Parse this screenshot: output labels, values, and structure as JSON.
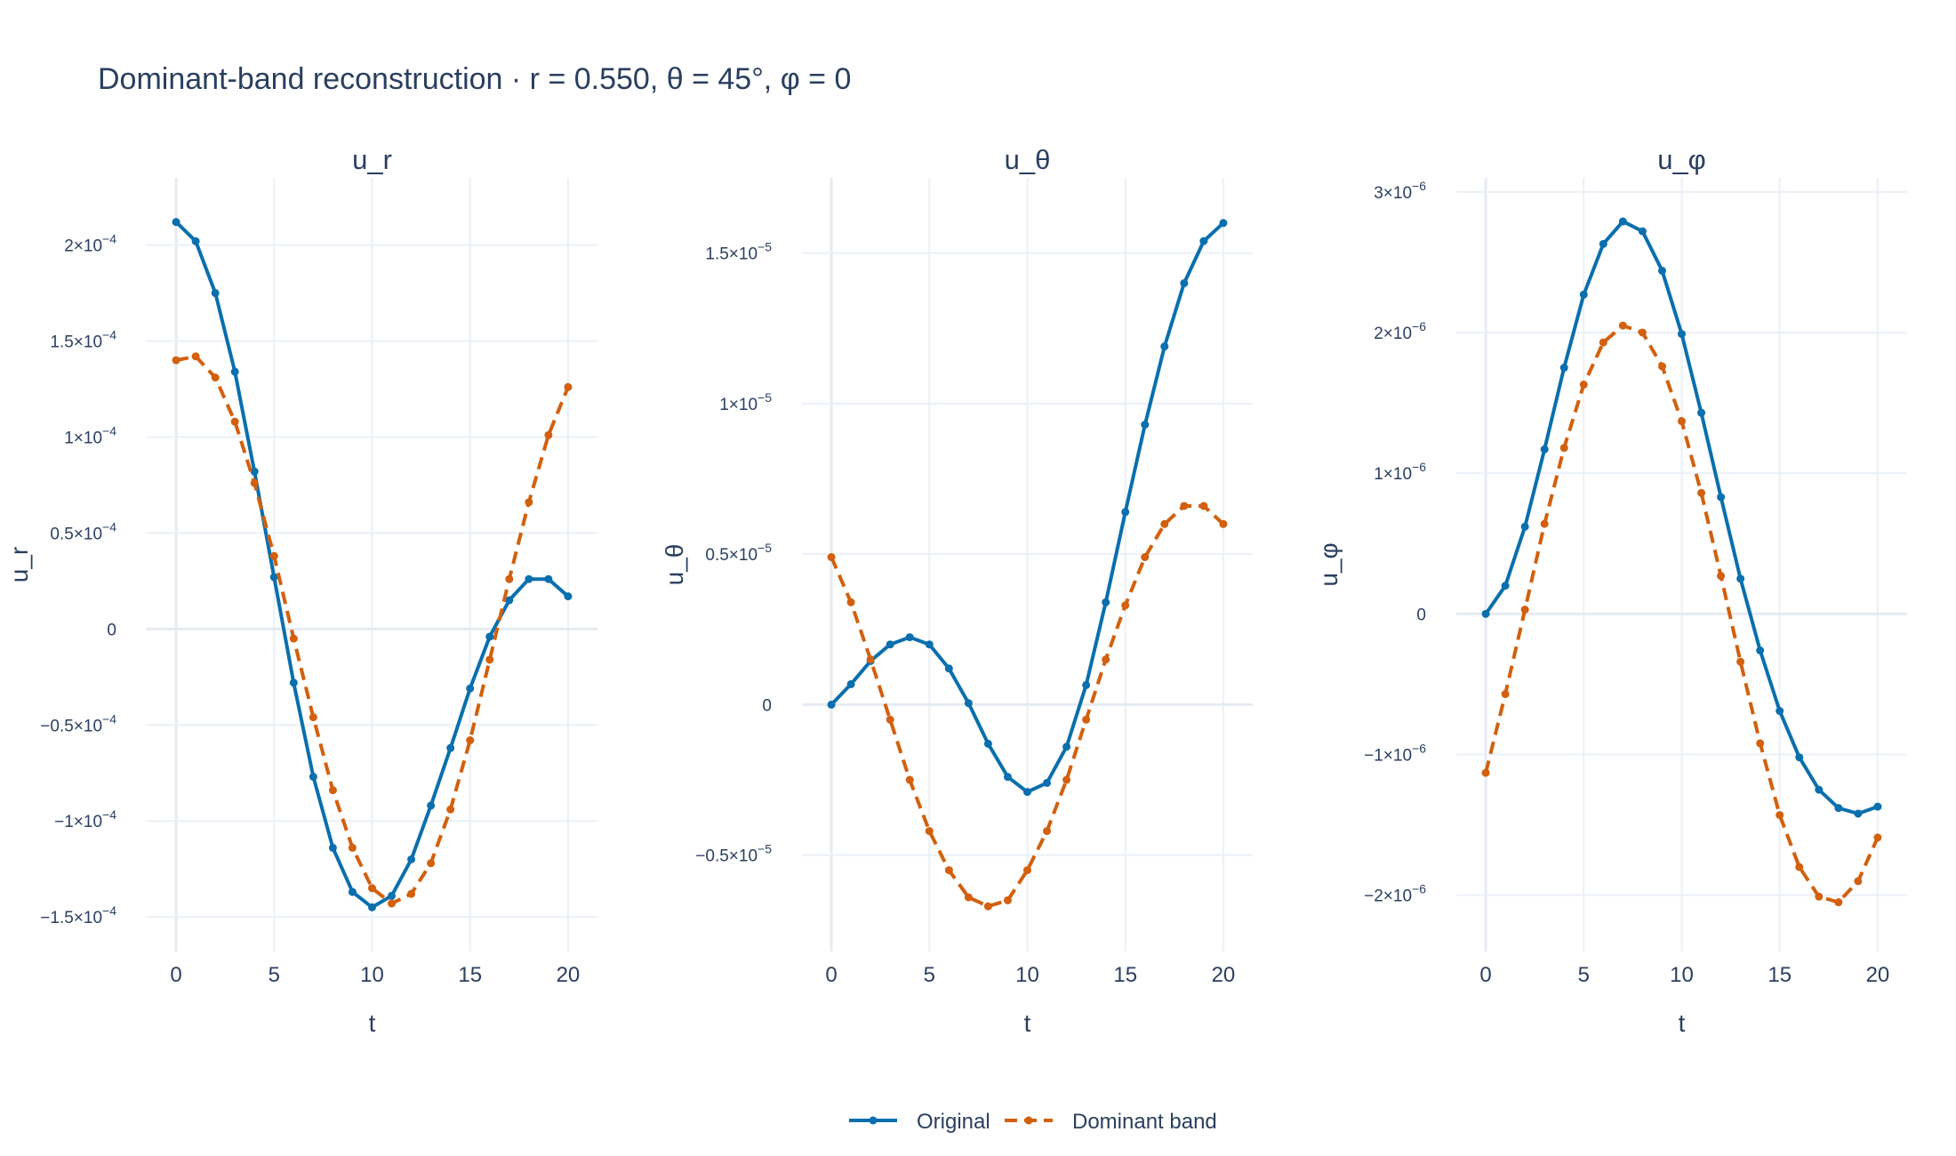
{
  "title": "Dominant-band reconstruction · r = 0.550, θ = 45°, φ = 0",
  "chart_data": [
    {
      "type": "line",
      "title": "u_r",
      "xlabel": "t",
      "ylabel": "u_r",
      "xlim": [
        -1.5,
        21.5
      ],
      "ylim": [
        -0.000168,
        0.000235
      ],
      "x_ticks": [
        0,
        5,
        10,
        15,
        20
      ],
      "x_tick_labels": [
        "0",
        "5",
        "10",
        "15",
        "20"
      ],
      "y_ticks": [
        -0.00015,
        -0.0001,
        -5e-05,
        0,
        5e-05,
        0.0001,
        0.00015,
        0.0002
      ],
      "y_tick_labels": [
        {
          "m": "−1.5×10",
          "e": "−4"
        },
        {
          "m": "−1×10",
          "e": "−4"
        },
        {
          "m": "−0.5×10",
          "e": "−4"
        },
        {
          "m": "0",
          "e": ""
        },
        {
          "m": "0.5×10",
          "e": "−4"
        },
        {
          "m": "1×10",
          "e": "−4"
        },
        {
          "m": "1.5×10",
          "e": "−4"
        },
        {
          "m": "2×10",
          "e": "−4"
        }
      ],
      "x": [
        0,
        1,
        2,
        3,
        4,
        5,
        6,
        7,
        8,
        9,
        10,
        11,
        12,
        13,
        14,
        15,
        16,
        17,
        18,
        19,
        20
      ],
      "series": [
        {
          "name": "Original",
          "values": [
            0.000212,
            0.000202,
            0.000175,
            0.000134,
            8.2e-05,
            2.7e-05,
            -2.8e-05,
            -7.7e-05,
            -0.000114,
            -0.000137,
            -0.000145,
            -0.000139,
            -0.00012,
            -9.2e-05,
            -6.2e-05,
            -3.1e-05,
            -4e-06,
            1.5e-05,
            2.6e-05,
            2.6e-05,
            1.7e-05
          ]
        },
        {
          "name": "Dominant band",
          "values": [
            0.00014,
            0.000142,
            0.000131,
            0.000108,
            7.6e-05,
            3.8e-05,
            -5e-06,
            -4.6e-05,
            -8.4e-05,
            -0.000114,
            -0.000135,
            -0.000143,
            -0.000138,
            -0.000122,
            -9.4e-05,
            -5.8e-05,
            -1.6e-05,
            2.6e-05,
            6.6e-05,
            0.000101,
            0.000126
          ]
        }
      ]
    },
    {
      "type": "line",
      "title": "u_θ",
      "xlabel": "t",
      "ylabel": "u_θ",
      "xlim": [
        -1.5,
        21.5
      ],
      "ylim": [
        -8.2e-06,
        1.75e-05
      ],
      "x_ticks": [
        0,
        5,
        10,
        15,
        20
      ],
      "x_tick_labels": [
        "0",
        "5",
        "10",
        "15",
        "20"
      ],
      "y_ticks": [
        -5e-06,
        0,
        5e-06,
        1e-05,
        1.5e-05
      ],
      "y_tick_labels": [
        {
          "m": "−0.5×10",
          "e": "−5"
        },
        {
          "m": "0",
          "e": ""
        },
        {
          "m": "0.5×10",
          "e": "−5"
        },
        {
          "m": "1×10",
          "e": "−5"
        },
        {
          "m": "1.5×10",
          "e": "−5"
        }
      ],
      "x": [
        0,
        1,
        2,
        3,
        4,
        5,
        6,
        7,
        8,
        9,
        10,
        11,
        12,
        13,
        14,
        15,
        16,
        17,
        18,
        19,
        20
      ],
      "series": [
        {
          "name": "Original",
          "values": [
            0,
            6.8e-07,
            1.45e-06,
            2e-06,
            2.24e-06,
            2e-06,
            1.2e-06,
            5e-08,
            -1.3e-06,
            -2.4e-06,
            -2.9e-06,
            -2.6e-06,
            -1.4e-06,
            6.5e-07,
            3.4e-06,
            6.4e-06,
            9.3e-06,
            1.19e-05,
            1.4e-05,
            1.54e-05,
            1.6e-05
          ]
        },
        {
          "name": "Dominant band",
          "values": [
            4.9e-06,
            3.4e-06,
            1.5e-06,
            -5e-07,
            -2.5e-06,
            -4.2e-06,
            -5.5e-06,
            -6.4e-06,
            -6.7e-06,
            -6.5e-06,
            -5.5e-06,
            -4.2e-06,
            -2.5e-06,
            -5e-07,
            1.5e-06,
            3.3e-06,
            4.9e-06,
            6e-06,
            6.6e-06,
            6.6e-06,
            6e-06
          ]
        }
      ]
    },
    {
      "type": "line",
      "title": "u_φ",
      "xlabel": "t",
      "ylabel": "u_φ",
      "xlim": [
        -1.5,
        21.5
      ],
      "ylim": [
        -2.4e-06,
        3.1e-06
      ],
      "x_ticks": [
        0,
        5,
        10,
        15,
        20
      ],
      "x_tick_labels": [
        "0",
        "5",
        "10",
        "15",
        "20"
      ],
      "y_ticks": [
        -2e-06,
        -1e-06,
        0,
        1e-06,
        2e-06,
        3e-06
      ],
      "y_tick_labels": [
        {
          "m": "−2×10",
          "e": "−6"
        },
        {
          "m": "−1×10",
          "e": "−6"
        },
        {
          "m": "0",
          "e": ""
        },
        {
          "m": "1×10",
          "e": "−6"
        },
        {
          "m": "2×10",
          "e": "−6"
        },
        {
          "m": "3×10",
          "e": "−6"
        }
      ],
      "x": [
        0,
        1,
        2,
        3,
        4,
        5,
        6,
        7,
        8,
        9,
        10,
        11,
        12,
        13,
        14,
        15,
        16,
        17,
        18,
        19,
        20
      ],
      "series": [
        {
          "name": "Original",
          "values": [
            0,
            2e-07,
            6.2e-07,
            1.17e-06,
            1.75e-06,
            2.27e-06,
            2.63e-06,
            2.79e-06,
            2.72e-06,
            2.44e-06,
            1.99e-06,
            1.43e-06,
            8.3e-07,
            2.5e-07,
            -2.6e-07,
            -6.9e-07,
            -1.02e-06,
            -1.25e-06,
            -1.38e-06,
            -1.42e-06,
            -1.37e-06
          ]
        },
        {
          "name": "Dominant band",
          "values": [
            -1.13e-06,
            -5.7e-07,
            3e-08,
            6.4e-07,
            1.18e-06,
            1.63e-06,
            1.93e-06,
            2.05e-06,
            2e-06,
            1.76e-06,
            1.37e-06,
            8.6e-07,
            2.7e-07,
            -3.4e-07,
            -9.2e-07,
            -1.43e-06,
            -1.8e-06,
            -2.01e-06,
            -2.05e-06,
            -1.9e-06,
            -1.59e-06
          ]
        }
      ]
    }
  ],
  "legend": {
    "position": "bottom-center",
    "items": [
      {
        "label": "Original",
        "color": "#0a6fae",
        "dash": "solid"
      },
      {
        "label": "Dominant band",
        "color": "#d2600e",
        "dash": "dash"
      }
    ]
  }
}
